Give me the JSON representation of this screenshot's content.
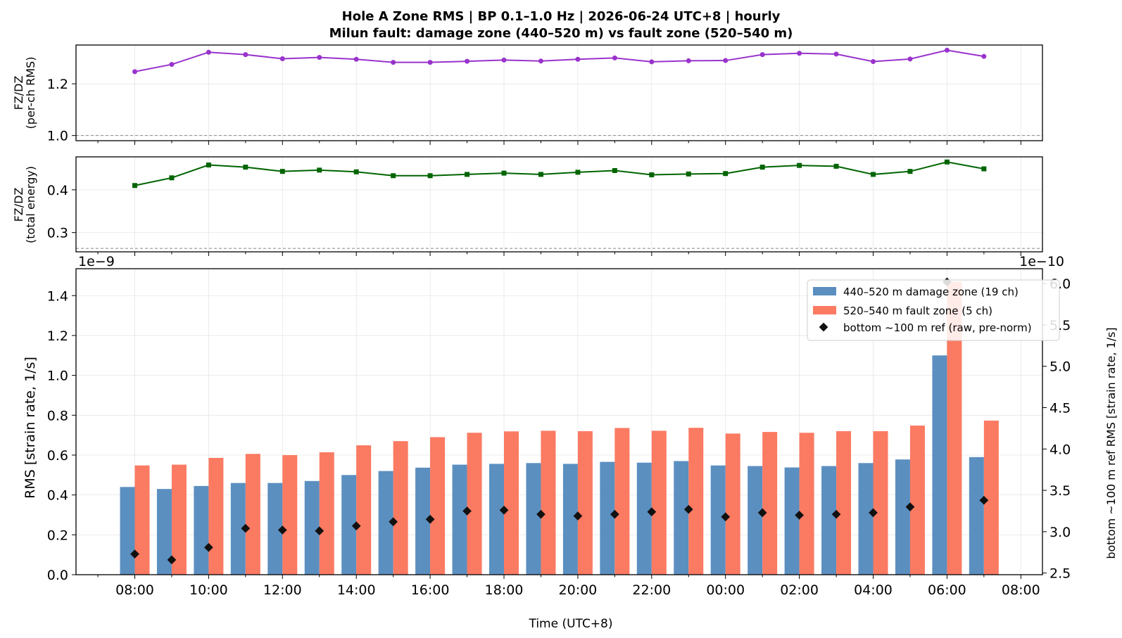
{
  "title": {
    "line1": "Hole A Zone RMS  |  BP 0.1–1.0 Hz  |  2026-06-24 UTC+8  |  hourly",
    "line2": "Milun fault: damage zone (440–520 m) vs fault zone (520–540 m)"
  },
  "colors": {
    "damage_zone": "#5b8fc0",
    "fault_zone": "#fb7a62",
    "ratio_rms": "#9933cc",
    "ratio_energy": "#006400",
    "reference": "#111111"
  },
  "chart_data": [
    {
      "type": "line",
      "ylabel": "FZ/DZ\n(per-ch RMS)",
      "hours": [
        0,
        1,
        2,
        3,
        4,
        5,
        6,
        7,
        8,
        9,
        10,
        11,
        12,
        13,
        14,
        15,
        16,
        17,
        18,
        19,
        20,
        21,
        22,
        23
      ],
      "values": [
        1.247,
        1.275,
        1.322,
        1.313,
        1.297,
        1.302,
        1.295,
        1.283,
        1.283,
        1.287,
        1.292,
        1.288,
        1.295,
        1.3,
        1.285,
        1.289,
        1.29,
        1.313,
        1.318,
        1.315,
        1.286,
        1.296,
        1.33,
        1.306
      ],
      "reference_line": 1.0,
      "ylim": [
        0.98,
        1.35
      ],
      "yticks": [
        "1.0",
        "1.2"
      ],
      "marker": "circle",
      "grid": true
    },
    {
      "type": "line",
      "ylabel": "FZ/DZ\n(total energy)",
      "hours": [
        0,
        1,
        2,
        3,
        4,
        5,
        6,
        7,
        8,
        9,
        10,
        11,
        12,
        13,
        14,
        15,
        16,
        17,
        18,
        19,
        20,
        21,
        22,
        23
      ],
      "values": [
        0.41,
        0.428,
        0.458,
        0.453,
        0.443,
        0.446,
        0.442,
        0.433,
        0.433,
        0.436,
        0.439,
        0.436,
        0.441,
        0.445,
        0.435,
        0.437,
        0.438,
        0.453,
        0.457,
        0.455,
        0.436,
        0.443,
        0.465,
        0.449
      ],
      "reference_line": 0.263,
      "ylim": [
        0.255,
        0.477
      ],
      "yticks": [
        "0.3",
        "0.4"
      ],
      "marker": "square",
      "grid": true
    },
    {
      "type": "bar",
      "xlabel": "Time (UTC+8)",
      "ylabel": "RMS  [strain rate, 1/s]",
      "ylabel_right": "bottom ~100 m ref RMS  [strain rate, 1/s]",
      "offset_left": "1e−9",
      "offset_right": "1e−10",
      "x_ticks": [
        "08:00",
        "10:00",
        "12:00",
        "14:00",
        "16:00",
        "18:00",
        "20:00",
        "22:00",
        "00:00",
        "02:00",
        "04:00",
        "06:00",
        "08:00"
      ],
      "yticks_left": [
        "0.0",
        "0.2",
        "0.4",
        "0.6",
        "0.8",
        "1.0",
        "1.2",
        "1.4"
      ],
      "yticks_right": [
        "2.5",
        "3.0",
        "3.5",
        "4.0",
        "4.5",
        "5.0",
        "5.5",
        "6.0"
      ],
      "ylim": [
        0,
        1.535
      ],
      "ylim_right": [
        2.48,
        6.18
      ],
      "legend_position": "top-right",
      "series": [
        {
          "name": "440–520 m  damage zone (19 ch)",
          "values": [
            0.44,
            0.43,
            0.445,
            0.46,
            0.46,
            0.47,
            0.5,
            0.52,
            0.537,
            0.552,
            0.556,
            0.56,
            0.556,
            0.566,
            0.562,
            0.57,
            0.548,
            0.545,
            0.538,
            0.545,
            0.56,
            0.578,
            1.1,
            0.59
          ]
        },
        {
          "name": "520–540 m  fault zone (5 ch)",
          "values": [
            0.548,
            0.552,
            0.586,
            0.606,
            0.6,
            0.614,
            0.649,
            0.67,
            0.69,
            0.712,
            0.719,
            0.722,
            0.72,
            0.736,
            0.722,
            0.737,
            0.708,
            0.716,
            0.712,
            0.72,
            0.72,
            0.748,
            1.47,
            0.773
          ]
        },
        {
          "name": "bottom ~100 m ref (raw, pre-norm)",
          "axis": "right",
          "values": [
            2.73,
            2.66,
            2.81,
            3.04,
            3.02,
            3.01,
            3.07,
            3.12,
            3.15,
            3.25,
            3.26,
            3.21,
            3.19,
            3.21,
            3.24,
            3.27,
            3.18,
            3.23,
            3.2,
            3.21,
            3.23,
            3.3,
            6.02,
            3.38
          ]
        }
      ]
    }
  ]
}
